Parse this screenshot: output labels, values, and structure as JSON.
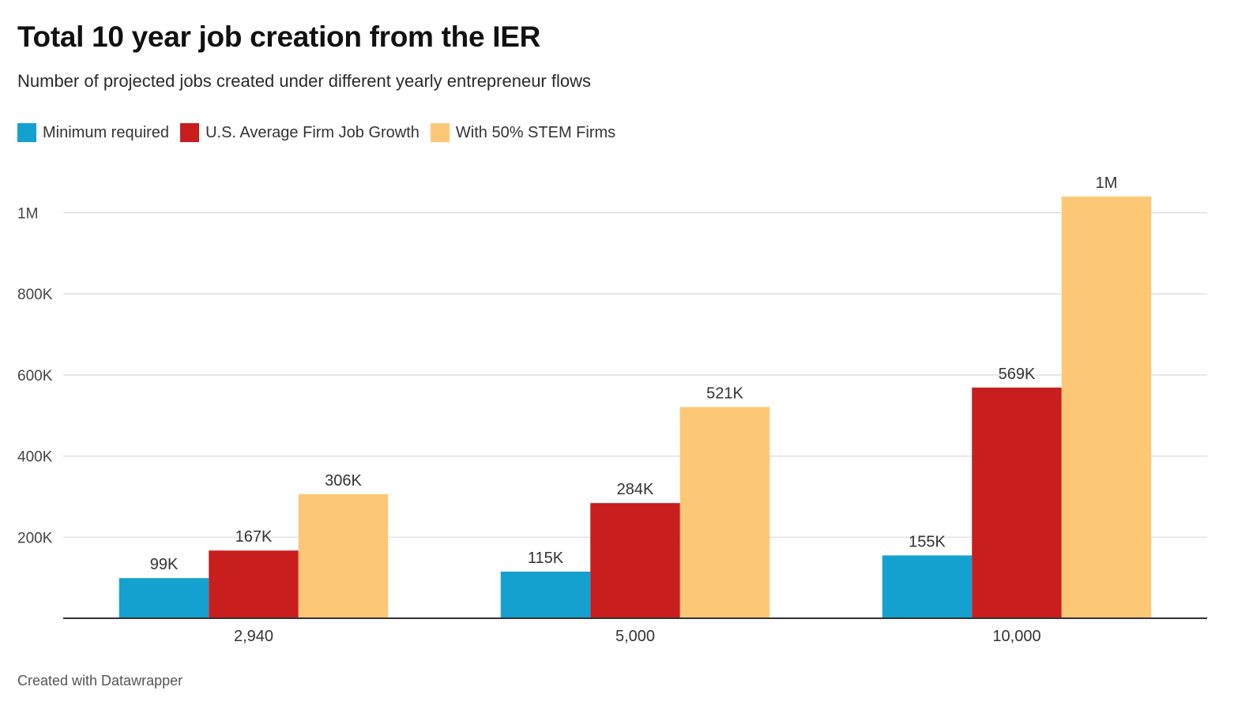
{
  "header": {
    "title": "Total 10 year job creation from the IER",
    "subtitle": "Number of projected jobs created under different yearly entrepreneur flows"
  },
  "footer": {
    "credit": "Created with Datawrapper"
  },
  "colors": {
    "minimum_required": "#15a1cf",
    "us_average": "#c81e1e",
    "stem": "#fdc876",
    "grid": "#d9d9d9",
    "axis": "#333333"
  },
  "chart_data": {
    "type": "bar",
    "title": "Total 10 year job creation from the IER",
    "subtitle": "Number of projected jobs created under different yearly entrepreneur flows",
    "xlabel": "",
    "ylabel": "",
    "categories": [
      "2,940",
      "5,000",
      "10,000"
    ],
    "series": [
      {
        "name": "Minimum required",
        "color": "#15a1cf",
        "values": [
          99000,
          115000,
          155000
        ],
        "labels": [
          "99K",
          "115K",
          "155K"
        ]
      },
      {
        "name": "U.S. Average Firm Job Growth",
        "color": "#c81e1e",
        "values": [
          167000,
          284000,
          569000
        ],
        "labels": [
          "167K",
          "284K",
          "569K"
        ]
      },
      {
        "name": "With 50% STEM Firms",
        "color": "#fdc876",
        "values": [
          306000,
          521000,
          1040000
        ],
        "labels": [
          "306K",
          "521K",
          "1M"
        ]
      }
    ],
    "ylim": [
      0,
      1000000
    ],
    "yticks": [
      200000,
      400000,
      600000,
      800000,
      1000000
    ],
    "ytick_labels": [
      "200K",
      "400K",
      "600K",
      "800K",
      "1M"
    ],
    "grid": true,
    "legend_position": "top-left"
  }
}
